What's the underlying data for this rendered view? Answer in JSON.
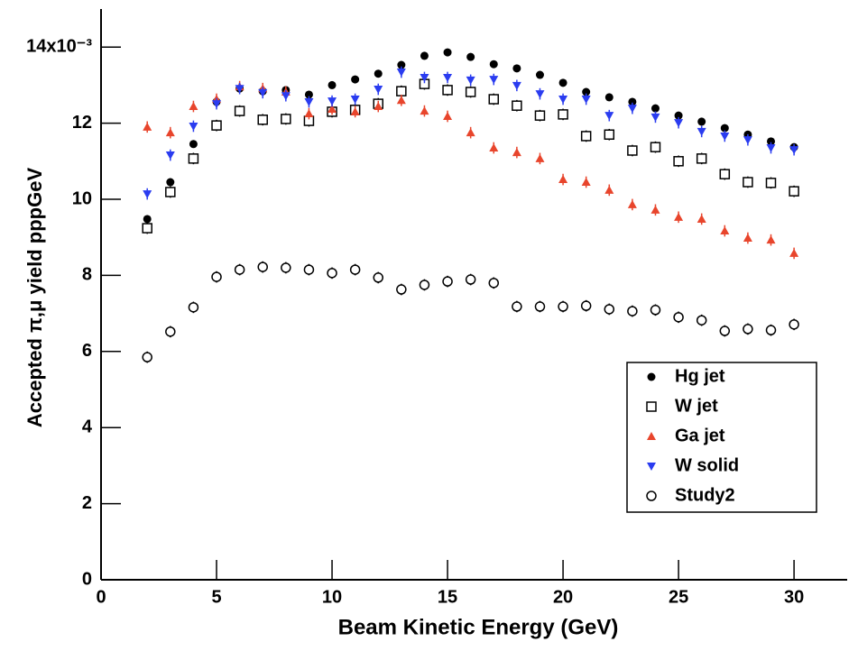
{
  "chart_data": {
    "type": "scatter",
    "xlabel": "Beam Kinetic Energy (GeV)",
    "ylabel": "Accepted π,μ yield pppGeV",
    "x": [
      2,
      3,
      4,
      5,
      6,
      7,
      8,
      9,
      10,
      11,
      12,
      13,
      14,
      15,
      16,
      17,
      18,
      19,
      20,
      21,
      22,
      23,
      24,
      25,
      26,
      27,
      28,
      29,
      30
    ],
    "xlim": [
      0,
      32.3
    ],
    "xticks": [
      0,
      5,
      10,
      15,
      20,
      25,
      30
    ],
    "ylim": [
      0,
      15
    ],
    "yticks": [
      0,
      2,
      4,
      6,
      8,
      10,
      12,
      {
        "value": 14,
        "label": "14x10⁻³"
      }
    ],
    "legend": "right",
    "series": [
      {
        "name": "Hg jet",
        "color": "#000000",
        "marker": "circle",
        "error": 0.1,
        "values": [
          9.48,
          10.45,
          11.45,
          12.56,
          12.91,
          12.84,
          12.87,
          12.75,
          13.0,
          13.15,
          13.3,
          13.53,
          13.77,
          13.86,
          13.74,
          13.55,
          13.44,
          13.27,
          13.06,
          12.82,
          12.68,
          12.56,
          12.39,
          12.2,
          12.04,
          11.87,
          11.7,
          11.52,
          11.37
        ]
      },
      {
        "name": "W jet",
        "color": "#000000",
        "marker": "square-open",
        "error": 0.15,
        "values": [
          9.24,
          10.19,
          11.07,
          11.94,
          12.32,
          12.09,
          12.11,
          12.06,
          12.3,
          12.35,
          12.51,
          12.84,
          13.03,
          12.87,
          12.82,
          12.63,
          12.46,
          12.2,
          12.23,
          11.66,
          11.7,
          11.28,
          11.37,
          11.0,
          11.07,
          10.66,
          10.45,
          10.43,
          10.21
        ]
      },
      {
        "name": "Ga jet",
        "color": "#e8452c",
        "marker": "triangle-up",
        "error": 0.15,
        "values": [
          11.9,
          11.75,
          12.44,
          12.63,
          12.96,
          12.91,
          12.82,
          12.25,
          12.37,
          12.3,
          12.44,
          12.6,
          12.32,
          12.18,
          11.75,
          11.35,
          11.23,
          11.07,
          10.52,
          10.45,
          10.24,
          9.86,
          9.72,
          9.53,
          9.48,
          9.17,
          8.98,
          8.93,
          8.58
        ]
      },
      {
        "name": "W solid",
        "color": "#2a3cf0",
        "marker": "triangle-down",
        "error": 0.15,
        "values": [
          10.14,
          11.16,
          11.92,
          12.51,
          12.91,
          12.8,
          12.72,
          12.56,
          12.58,
          12.63,
          12.89,
          13.34,
          13.2,
          13.2,
          13.13,
          13.15,
          12.99,
          12.77,
          12.63,
          12.63,
          12.2,
          12.39,
          12.16,
          12.01,
          11.78,
          11.66,
          11.56,
          11.35,
          11.3
        ]
      },
      {
        "name": "Study2",
        "color": "#000000",
        "marker": "circle-open",
        "error": 0.15,
        "values": [
          5.85,
          6.52,
          7.16,
          7.96,
          8.15,
          8.22,
          8.2,
          8.15,
          8.06,
          8.15,
          7.94,
          7.63,
          7.75,
          7.84,
          7.89,
          7.8,
          7.18,
          7.18,
          7.18,
          7.2,
          7.11,
          7.06,
          7.09,
          6.9,
          6.82,
          6.54,
          6.59,
          6.56,
          6.71
        ]
      }
    ]
  }
}
